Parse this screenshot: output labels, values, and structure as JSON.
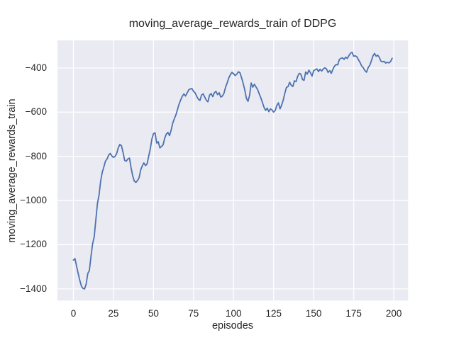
{
  "chart_data": {
    "type": "line",
    "title": "moving_average_rewards_train of DDPG",
    "xlabel": "episodes",
    "ylabel": "moving_average_rewards_train",
    "legend": "none",
    "grid": true,
    "plot_bg_color": "#eaeaf2",
    "grid_color": "#ffffff",
    "text_color": "#262626",
    "xlim": [
      -9.95,
      208.95
    ],
    "ylim": [
      -1453,
      -275
    ],
    "x_ticks": [
      {
        "label": "0",
        "value": 0
      },
      {
        "label": "25",
        "value": 25
      },
      {
        "label": "50",
        "value": 50
      },
      {
        "label": "75",
        "value": 75
      },
      {
        "label": "100",
        "value": 100
      },
      {
        "label": "125",
        "value": 125
      },
      {
        "label": "150",
        "value": 150
      },
      {
        "label": "175",
        "value": 175
      },
      {
        "label": "200",
        "value": 200
      }
    ],
    "y_ticks": [
      {
        "label": "−400",
        "value": -400
      },
      {
        "label": "−600",
        "value": -600
      },
      {
        "label": "−800",
        "value": -800
      },
      {
        "label": "−1000",
        "value": -1000
      },
      {
        "label": "−1200",
        "value": -1200
      },
      {
        "label": "−1400",
        "value": -1400
      }
    ],
    "series": [
      {
        "name": "moving_average_rewards_train",
        "color": "#4c72b0",
        "line_width": 1.8,
        "x_is_index_from": 0,
        "values": [
          -1270,
          -1263,
          -1298,
          -1330,
          -1362,
          -1388,
          -1398,
          -1400,
          -1378,
          -1330,
          -1317,
          -1252,
          -1195,
          -1165,
          -1088,
          -1015,
          -975,
          -912,
          -873,
          -848,
          -822,
          -812,
          -795,
          -787,
          -798,
          -805,
          -800,
          -788,
          -762,
          -746,
          -752,
          -782,
          -818,
          -822,
          -812,
          -808,
          -852,
          -888,
          -912,
          -918,
          -910,
          -897,
          -862,
          -843,
          -830,
          -842,
          -835,
          -800,
          -765,
          -722,
          -697,
          -694,
          -740,
          -734,
          -762,
          -755,
          -748,
          -718,
          -700,
          -692,
          -706,
          -682,
          -650,
          -630,
          -612,
          -588,
          -563,
          -544,
          -528,
          -517,
          -527,
          -513,
          -499,
          -495,
          -493,
          -506,
          -513,
          -528,
          -541,
          -547,
          -523,
          -517,
          -532,
          -546,
          -553,
          -523,
          -516,
          -530,
          -512,
          -506,
          -521,
          -512,
          -532,
          -527,
          -515,
          -487,
          -468,
          -445,
          -430,
          -420,
          -426,
          -434,
          -428,
          -417,
          -422,
          -445,
          -470,
          -500,
          -537,
          -551,
          -523,
          -468,
          -487,
          -474,
          -486,
          -498,
          -517,
          -535,
          -556,
          -578,
          -592,
          -582,
          -598,
          -585,
          -590,
          -600,
          -592,
          -570,
          -558,
          -585,
          -568,
          -545,
          -515,
          -488,
          -484,
          -465,
          -478,
          -484,
          -458,
          -462,
          -438,
          -424,
          -428,
          -452,
          -456,
          -418,
          -428,
          -410,
          -422,
          -437,
          -412,
          -408,
          -404,
          -416,
          -406,
          -414,
          -404,
          -399,
          -404,
          -420,
          -412,
          -424,
          -406,
          -392,
          -384,
          -386,
          -362,
          -356,
          -354,
          -361,
          -351,
          -357,
          -344,
          -333,
          -329,
          -347,
          -345,
          -350,
          -363,
          -376,
          -391,
          -399,
          -412,
          -419,
          -398,
          -388,
          -368,
          -346,
          -334,
          -347,
          -342,
          -353,
          -369,
          -372,
          -370,
          -378,
          -374,
          -377,
          -371,
          -356
        ]
      }
    ]
  }
}
